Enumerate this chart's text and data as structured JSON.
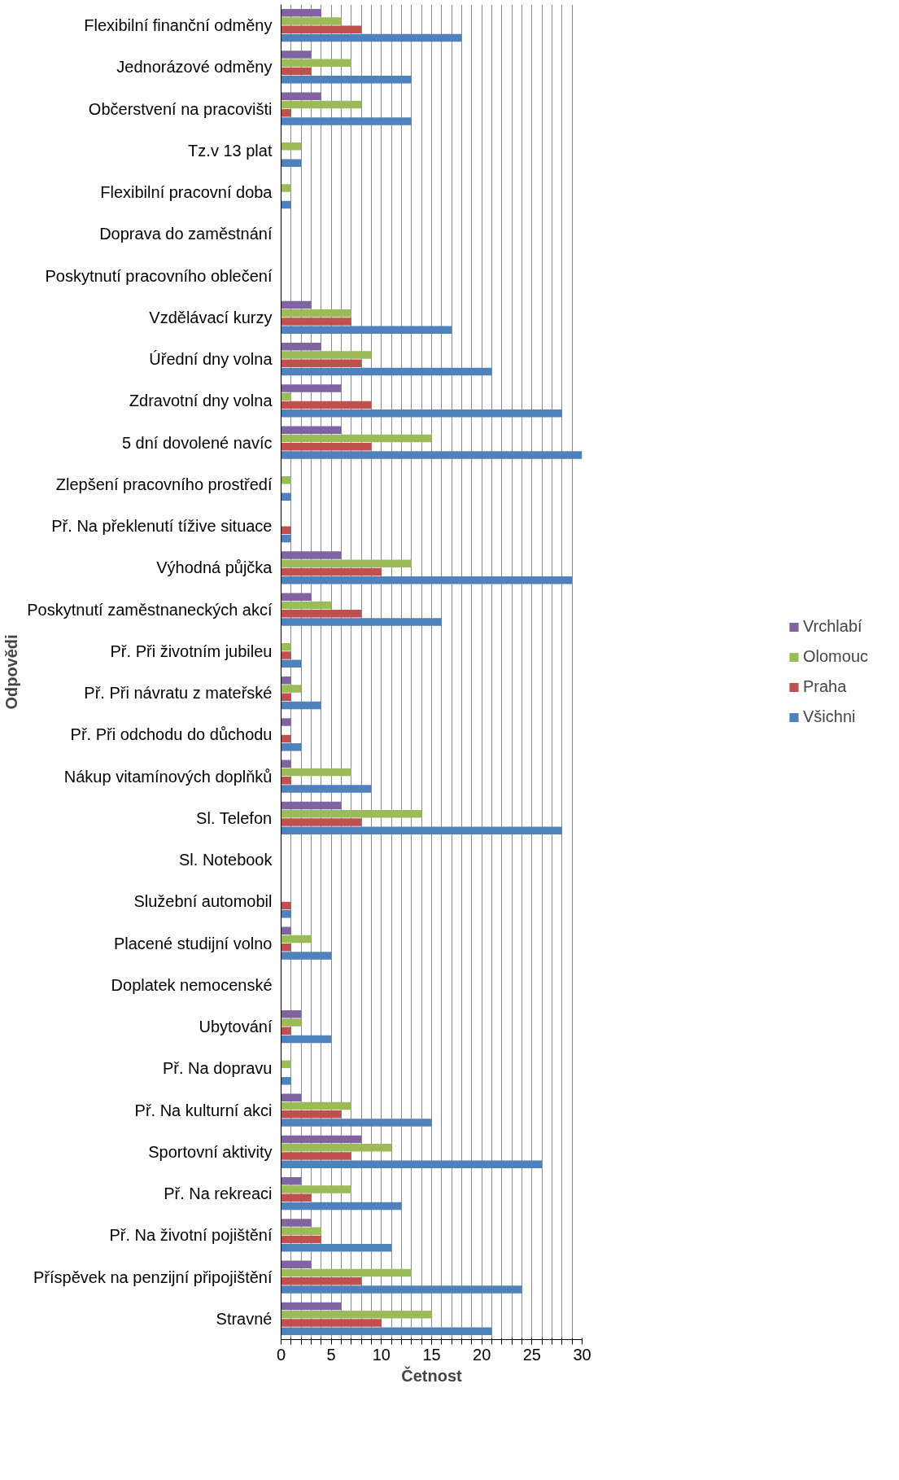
{
  "chart_data": {
    "type": "bar",
    "orientation": "horizontal",
    "xlabel": "Četnost",
    "ylabel": "Odpovědi",
    "categories": [
      "Flexibilní finanční odměny",
      "Jednorázové odměny",
      "Občerstvení na pracovišti",
      "Tz.v 13 plat",
      "Flexibilní pracovní doba",
      "Doprava do zaměstnání",
      "Poskytnutí pracovního oblečení",
      "Vzdělávací kurzy",
      "Úřední dny volna",
      "Zdravotní dny volna",
      "5 dní dovolené navíc",
      "Zlepšení pracovního prostředí",
      "Př. Na překlenutí tížive situace",
      "Výhodná půjčka",
      "Poskytnutí zaměstnaneckých akcí",
      "Př. Při životním jubileu",
      "Př. Při návratu z mateřské",
      "Př. Při odchodu do důchodu",
      "Nákup vitamínových doplňků",
      "Sl. Telefon",
      "Sl. Notebook",
      "Služební automobil",
      "Placené studijní volno",
      "Doplatek nemocenské",
      "Ubytování",
      "Př. Na dopravu",
      "Př. Na kulturní akci",
      "Sportovní aktivity",
      "Př. Na rekreaci",
      "Př. Na životní pojištění",
      "Příspěvek na penzijní připojištění",
      "Stravné"
    ],
    "series": [
      {
        "name": "Vrchlabí",
        "color": "#8064a2",
        "values": [
          4,
          3,
          4,
          0,
          0,
          0,
          0,
          3,
          4,
          6,
          6,
          0,
          0,
          6,
          3,
          0,
          1,
          1,
          1,
          6,
          0,
          0,
          1,
          0,
          2,
          0,
          2,
          8,
          2,
          3,
          3,
          6
        ]
      },
      {
        "name": "Olomouc",
        "color": "#9bbb59",
        "values": [
          6,
          7,
          8,
          2,
          1,
          0,
          0,
          7,
          9,
          1,
          15,
          1,
          0,
          13,
          5,
          1,
          2,
          0,
          7,
          14,
          0,
          0,
          3,
          0,
          2,
          1,
          7,
          11,
          7,
          4,
          13,
          15
        ]
      },
      {
        "name": "Praha",
        "color": "#c0504d",
        "values": [
          8,
          3,
          1,
          0,
          0,
          0,
          0,
          7,
          8,
          9,
          9,
          0,
          1,
          10,
          8,
          1,
          1,
          1,
          1,
          8,
          0,
          1,
          1,
          0,
          1,
          0,
          6,
          7,
          3,
          4,
          8,
          10
        ]
      },
      {
        "name": "Všichni",
        "color": "#4f81bd",
        "values": [
          18,
          13,
          13,
          2,
          1,
          0,
          0,
          17,
          21,
          28,
          30,
          1,
          1,
          29,
          16,
          2,
          4,
          2,
          9,
          28,
          0,
          1,
          5,
          0,
          5,
          1,
          15,
          26,
          12,
          11,
          24,
          21
        ]
      }
    ],
    "xlim": [
      0,
      30
    ],
    "xticks": [
      0,
      {
        "value": 1,
        "label": null
      },
      {
        "value": 2,
        "label": null
      },
      {
        "value": 3,
        "label": null
      },
      {
        "value": 4,
        "label": null
      },
      5,
      {
        "value": 6,
        "label": null
      },
      {
        "value": 7,
        "label": null
      },
      {
        "value": 8,
        "label": null
      },
      {
        "value": 9,
        "label": null
      },
      10,
      {
        "value": 11,
        "label": null
      },
      {
        "value": 12,
        "label": null
      },
      {
        "value": 13,
        "label": null
      },
      {
        "value": 14,
        "label": null
      },
      15,
      {
        "value": 16,
        "label": null
      },
      {
        "value": 17,
        "label": null
      },
      {
        "value": 18,
        "label": null
      },
      {
        "value": 19,
        "label": null
      },
      20,
      {
        "value": 21,
        "label": null
      },
      {
        "value": 22,
        "label": null
      },
      {
        "value": 23,
        "label": null
      },
      {
        "value": 24,
        "label": null
      },
      25,
      {
        "value": 26,
        "label": null
      },
      {
        "value": 27,
        "label": null
      },
      {
        "value": 28,
        "label": null
      },
      {
        "value": 29,
        "label": null
      },
      30
    ],
    "grid": "x",
    "legend": "right"
  }
}
